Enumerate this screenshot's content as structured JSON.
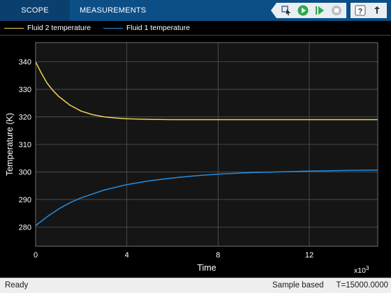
{
  "toolstrip": {
    "tabs": [
      {
        "label": "SCOPE"
      },
      {
        "label": "MEASUREMENTS"
      }
    ],
    "icons": [
      "highlight-simulink-block-icon",
      "run-icon",
      "step-forward-icon",
      "stop-icon",
      "help-icon",
      "undock-icon"
    ]
  },
  "legend": {
    "items": [
      {
        "label": "Fluid 2 temperature",
        "color": "#f2d256"
      },
      {
        "label": "Fluid 1 temperature",
        "color": "#1f8fe6"
      }
    ]
  },
  "colors": {
    "toolstrip_bg": "#0b4f86",
    "plot_bg": "#151515",
    "grid": "#555555",
    "axis_text": "#ffffff",
    "fluid2": "#f2d256",
    "fluid1": "#1f8fe6"
  },
  "chart_data": {
    "type": "line",
    "xlabel": "Time",
    "ylabel": "Temperature (K)",
    "x_exponent_label": "x10",
    "x_exponent_power": "3",
    "xlim": [
      0,
      15000
    ],
    "ylim": [
      273,
      347
    ],
    "xticks": [
      0,
      4000,
      8000,
      12000
    ],
    "xtick_labels": [
      "0",
      "4",
      "8",
      "12"
    ],
    "yticks": [
      280,
      290,
      300,
      310,
      320,
      330,
      340
    ],
    "ytick_labels": [
      "280",
      "290",
      "300",
      "310",
      "320",
      "330",
      "340"
    ],
    "grid": true,
    "series": [
      {
        "name": "Fluid 2 temperature",
        "color": "#f2d256",
        "x": [
          0,
          250,
          500,
          750,
          1000,
          1500,
          2000,
          2500,
          3000,
          3500,
          4000,
          5000,
          6000,
          8000,
          10000,
          12000,
          15000
        ],
        "y": [
          340,
          335.9,
          332.3,
          329.7,
          327.5,
          324.3,
          322.1,
          320.8,
          320.0,
          319.6,
          319.3,
          319.1,
          319.0,
          319.0,
          319.0,
          319.0,
          319.0
        ]
      },
      {
        "name": "Fluid 1 temperature",
        "color": "#1f8fe6",
        "x": [
          0,
          500,
          1000,
          1500,
          2000,
          3000,
          4000,
          5000,
          6000,
          7000,
          8000,
          9000,
          10000,
          12000,
          14000,
          15000
        ],
        "y": [
          280.5,
          283.7,
          286.5,
          288.8,
          290.6,
          293.4,
          295.4,
          296.8,
          297.8,
          298.6,
          299.2,
          299.6,
          299.9,
          300.3,
          300.6,
          300.7
        ]
      }
    ]
  },
  "status": {
    "ready": "Ready",
    "mode": "Sample based",
    "time": "T=15000.0000"
  }
}
